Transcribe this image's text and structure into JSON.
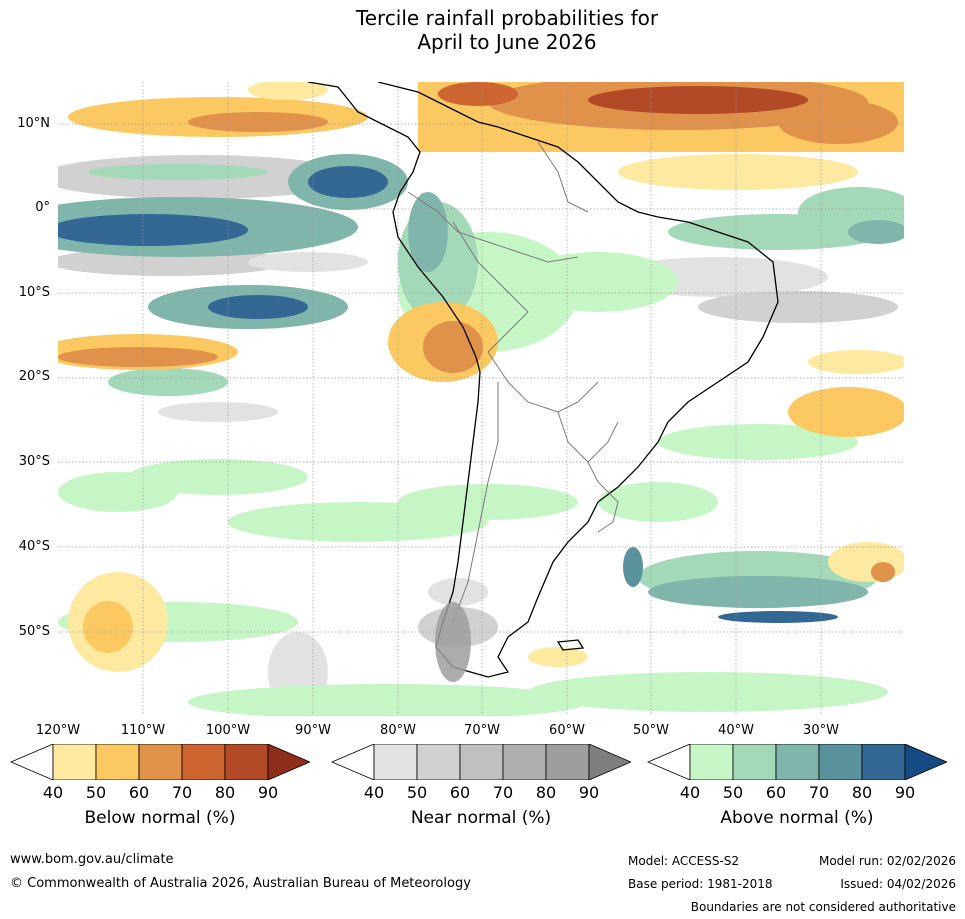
{
  "title_line1": "Tercile rainfall probabilities for",
  "title_line2": "April to June 2026",
  "lat_labels": [
    "10°N",
    "0°",
    "10°S",
    "20°S",
    "30°S",
    "40°S",
    "50°S"
  ],
  "lon_labels": [
    "120°W",
    "110°W",
    "100°W",
    "90°W",
    "80°W",
    "70°W",
    "60°W",
    "50°W",
    "40°W",
    "30°W"
  ],
  "colorbars": [
    {
      "label": "Below normal (%)",
      "ticks": [
        "40",
        "50",
        "60",
        "70",
        "80",
        "90"
      ],
      "colors": [
        "#fde9a0",
        "#fcc862",
        "#e0914a",
        "#cd6531",
        "#b24a27",
        "#8f2d1b"
      ]
    },
    {
      "label": "Near normal (%)",
      "ticks": [
        "40",
        "50",
        "60",
        "70",
        "80",
        "90"
      ],
      "colors": [
        "#e2e2e2",
        "#d1d1d1",
        "#c0c0c0",
        "#b0b0b0",
        "#9e9e9e",
        "#7e7e7e"
      ]
    },
    {
      "label": "Above normal (%)",
      "ticks": [
        "40",
        "50",
        "60",
        "70",
        "80",
        "90"
      ],
      "colors": [
        "#c7f6c6",
        "#a3d8b8",
        "#7fb5aa",
        "#5a929e",
        "#346894",
        "#154a82"
      ]
    }
  ],
  "footer": {
    "website": "www.bom.gov.au/climate",
    "copyright": "© Commonwealth of Australia 2026, Australian Bureau of Meteorology",
    "model": "Model: ACCESS-S2",
    "base_period": "Base period: 1981-2018",
    "model_run": "Model run: 02/02/2026",
    "issued": "Issued: 04/02/2026",
    "disclaimer": "Boundaries are not considered authoritative"
  }
}
